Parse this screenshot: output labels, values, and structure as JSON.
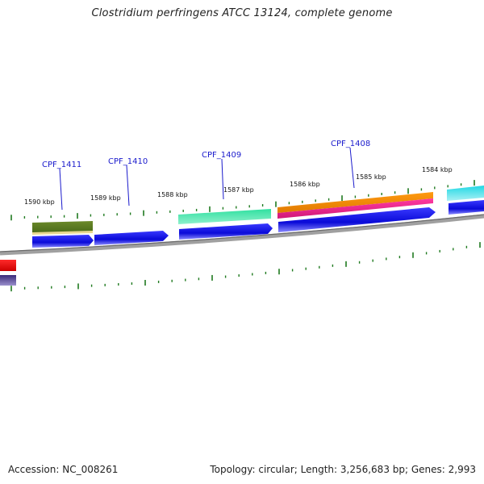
{
  "header": {
    "title": "Clostridium perfringens ATCC 13124, complete genome"
  },
  "footer": {
    "accession": "Accession: NC_008261",
    "summary": "Topology: circular; Length: 3,256,683 bp; Genes: 2,993"
  },
  "ruler": {
    "labels": [
      "1590 kbp",
      "1589 kbp",
      "1588 kbp",
      "1587 kbp",
      "1586 kbp",
      "1585 kbp",
      "1584 kbp"
    ]
  },
  "genes": {
    "labels": [
      "CPF_1411",
      "CPF_1410",
      "CPF_1409",
      "CPF_1408"
    ]
  },
  "colors": {
    "gene_label": "#1a1acc",
    "tick": "#1f7a1f",
    "backbone": "#8c8c8c",
    "blue": "#1010e6",
    "olive": "#5a7a20",
    "teal": "#19cc8c",
    "orange": "#f08c00",
    "magenta": "#e6208c",
    "cyan": "#19d2dc",
    "red": "#ee1010",
    "purple": "#4a3a8a"
  }
}
